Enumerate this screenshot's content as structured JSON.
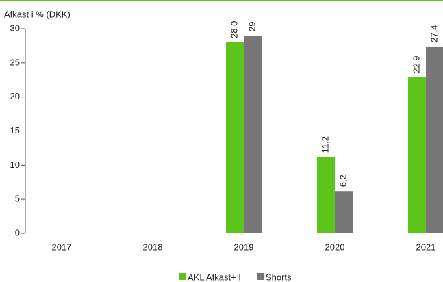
{
  "chart_data": {
    "type": "bar",
    "y_label": "Afkast i % (DKK)",
    "categories": [
      "2017",
      "2018",
      "2019",
      "2020",
      "2021"
    ],
    "series": [
      {
        "name": "AKL Afkast+ I",
        "color": "#5cc41a",
        "values": [
          null,
          null,
          28.0,
          11.2,
          22.9
        ],
        "value_labels": [
          null,
          null,
          "28,0",
          "11,2",
          "22,9"
        ]
      },
      {
        "name": "Shorts",
        "color": "#777777",
        "values": [
          null,
          null,
          29,
          6.2,
          27.4
        ],
        "value_labels": [
          null,
          null,
          "29",
          "6,2",
          "27,4"
        ]
      }
    ],
    "ylim": [
      0,
      30
    ],
    "yticks": [
      0,
      5,
      10,
      15,
      20,
      25,
      30
    ],
    "legend": "bottom"
  }
}
